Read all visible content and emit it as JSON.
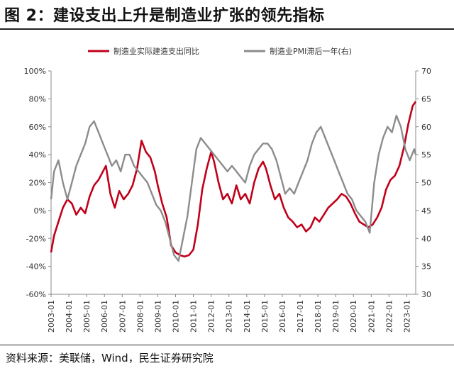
{
  "figure_title": "图 2：建设支出上升是制造业扩张的领先指标",
  "source": "资料来源：美联储，Wind，民生证券研究院",
  "colors": {
    "primary": "#c0001a",
    "secondary": "#8c8c8c",
    "axis": "#888888"
  },
  "chart_data": {
    "type": "line",
    "title": "",
    "legend_position": "top",
    "grid": false,
    "x_ticks": [
      "2003-01",
      "2004-01",
      "2005-01",
      "2006-01",
      "2007-01",
      "2008-01",
      "2009-01",
      "2010-01",
      "2011-01",
      "2012-01",
      "2013-01",
      "2014-01",
      "2015-01",
      "2016-01",
      "2017-01",
      "2018-01",
      "2019-01",
      "2020-01",
      "2021-01",
      "2022-01",
      "2023-01"
    ],
    "xlim": [
      "2003-01",
      "2023-07"
    ],
    "y_left": {
      "ylim": [
        -60,
        100
      ],
      "ticks": [
        "-60%",
        "-40%",
        "-20%",
        "0%",
        "20%",
        "40%",
        "60%",
        "80%",
        "100%"
      ]
    },
    "y_right": {
      "ylim": [
        30,
        70
      ],
      "ticks": [
        "30",
        "35",
        "40",
        "45",
        "50",
        "55",
        "60",
        "65",
        "70"
      ]
    },
    "series": [
      {
        "name": "制造业实际建造支出同比",
        "axis": "left",
        "color": "#c0001a",
        "points": [
          [
            "2003-01",
            -30
          ],
          [
            "2003-03",
            -18
          ],
          [
            "2003-06",
            -8
          ],
          [
            "2003-09",
            2
          ],
          [
            "2003-12",
            8
          ],
          [
            "2004-03",
            5
          ],
          [
            "2004-06",
            -3
          ],
          [
            "2004-09",
            2
          ],
          [
            "2004-12",
            -2
          ],
          [
            "2005-03",
            10
          ],
          [
            "2005-06",
            18
          ],
          [
            "2005-09",
            22
          ],
          [
            "2005-12",
            28
          ],
          [
            "2006-02",
            32
          ],
          [
            "2006-05",
            12
          ],
          [
            "2006-08",
            2
          ],
          [
            "2006-11",
            14
          ],
          [
            "2007-02",
            8
          ],
          [
            "2007-05",
            12
          ],
          [
            "2007-08",
            18
          ],
          [
            "2007-11",
            30
          ],
          [
            "2008-02",
            50
          ],
          [
            "2008-05",
            42
          ],
          [
            "2008-08",
            38
          ],
          [
            "2008-11",
            28
          ],
          [
            "2009-01",
            18
          ],
          [
            "2009-04",
            5
          ],
          [
            "2009-07",
            -5
          ],
          [
            "2009-10",
            -25
          ],
          [
            "2010-01",
            -30
          ],
          [
            "2010-04",
            -32
          ],
          [
            "2010-07",
            -33
          ],
          [
            "2010-10",
            -32
          ],
          [
            "2011-01",
            -28
          ],
          [
            "2011-04",
            -10
          ],
          [
            "2011-07",
            15
          ],
          [
            "2011-10",
            30
          ],
          [
            "2012-01",
            42
          ],
          [
            "2012-03",
            35
          ],
          [
            "2012-06",
            20
          ],
          [
            "2012-09",
            8
          ],
          [
            "2012-12",
            12
          ],
          [
            "2013-03",
            5
          ],
          [
            "2013-06",
            18
          ],
          [
            "2013-09",
            8
          ],
          [
            "2013-12",
            12
          ],
          [
            "2014-03",
            5
          ],
          [
            "2014-06",
            20
          ],
          [
            "2014-09",
            30
          ],
          [
            "2014-12",
            35
          ],
          [
            "2015-02",
            30
          ],
          [
            "2015-05",
            18
          ],
          [
            "2015-08",
            8
          ],
          [
            "2015-11",
            12
          ],
          [
            "2016-02",
            2
          ],
          [
            "2016-05",
            -5
          ],
          [
            "2016-08",
            -8
          ],
          [
            "2016-11",
            -12
          ],
          [
            "2017-02",
            -10
          ],
          [
            "2017-05",
            -15
          ],
          [
            "2017-08",
            -12
          ],
          [
            "2017-11",
            -5
          ],
          [
            "2018-02",
            -8
          ],
          [
            "2018-05",
            -3
          ],
          [
            "2018-08",
            2
          ],
          [
            "2018-11",
            5
          ],
          [
            "2019-02",
            8
          ],
          [
            "2019-05",
            12
          ],
          [
            "2019-08",
            10
          ],
          [
            "2019-11",
            5
          ],
          [
            "2020-02",
            -2
          ],
          [
            "2020-05",
            -8
          ],
          [
            "2020-08",
            -10
          ],
          [
            "2020-11",
            -12
          ],
          [
            "2021-02",
            -10
          ],
          [
            "2021-05",
            -5
          ],
          [
            "2021-08",
            2
          ],
          [
            "2021-11",
            15
          ],
          [
            "2022-02",
            22
          ],
          [
            "2022-05",
            25
          ],
          [
            "2022-08",
            32
          ],
          [
            "2022-11",
            45
          ],
          [
            "2023-02",
            62
          ],
          [
            "2023-05",
            75
          ],
          [
            "2023-07",
            78
          ]
        ]
      },
      {
        "name": "制造业PMI滞后一年(右)",
        "axis": "right",
        "color": "#8c8c8c",
        "points": [
          [
            "2003-01",
            47
          ],
          [
            "2003-03",
            52
          ],
          [
            "2003-06",
            54
          ],
          [
            "2003-09",
            50
          ],
          [
            "2003-12",
            47
          ],
          [
            "2004-03",
            50
          ],
          [
            "2004-06",
            53
          ],
          [
            "2004-09",
            55
          ],
          [
            "2004-12",
            57
          ],
          [
            "2005-03",
            60
          ],
          [
            "2005-06",
            61
          ],
          [
            "2005-09",
            59
          ],
          [
            "2005-12",
            57
          ],
          [
            "2006-03",
            55
          ],
          [
            "2006-06",
            53
          ],
          [
            "2006-09",
            54
          ],
          [
            "2006-12",
            52
          ],
          [
            "2007-03",
            55
          ],
          [
            "2007-06",
            55
          ],
          [
            "2007-09",
            53
          ],
          [
            "2007-12",
            52
          ],
          [
            "2008-03",
            51
          ],
          [
            "2008-06",
            50
          ],
          [
            "2008-09",
            48
          ],
          [
            "2008-12",
            46
          ],
          [
            "2009-03",
            45
          ],
          [
            "2009-06",
            43
          ],
          [
            "2009-09",
            40
          ],
          [
            "2009-12",
            37
          ],
          [
            "2010-03",
            36
          ],
          [
            "2010-06",
            40
          ],
          [
            "2010-09",
            44
          ],
          [
            "2010-12",
            50
          ],
          [
            "2011-03",
            56
          ],
          [
            "2011-06",
            58
          ],
          [
            "2011-09",
            57
          ],
          [
            "2011-12",
            56
          ],
          [
            "2012-03",
            55
          ],
          [
            "2012-06",
            54
          ],
          [
            "2012-09",
            53
          ],
          [
            "2012-12",
            52
          ],
          [
            "2013-03",
            53
          ],
          [
            "2013-06",
            52
          ],
          [
            "2013-09",
            51
          ],
          [
            "2013-12",
            50
          ],
          [
            "2014-03",
            53
          ],
          [
            "2014-06",
            55
          ],
          [
            "2014-09",
            56
          ],
          [
            "2014-12",
            57
          ],
          [
            "2015-03",
            57
          ],
          [
            "2015-06",
            56
          ],
          [
            "2015-09",
            54
          ],
          [
            "2015-12",
            51
          ],
          [
            "2016-03",
            48
          ],
          [
            "2016-06",
            49
          ],
          [
            "2016-09",
            48
          ],
          [
            "2016-12",
            50
          ],
          [
            "2017-03",
            52
          ],
          [
            "2017-06",
            54
          ],
          [
            "2017-09",
            57
          ],
          [
            "2017-12",
            59
          ],
          [
            "2018-03",
            60
          ],
          [
            "2018-06",
            58
          ],
          [
            "2018-09",
            56
          ],
          [
            "2018-12",
            54
          ],
          [
            "2019-03",
            52
          ],
          [
            "2019-06",
            50
          ],
          [
            "2019-09",
            48
          ],
          [
            "2019-12",
            47
          ],
          [
            "2020-03",
            45
          ],
          [
            "2020-06",
            44
          ],
          [
            "2020-09",
            43
          ],
          [
            "2020-12",
            41
          ],
          [
            "2021-03",
            50
          ],
          [
            "2021-06",
            55
          ],
          [
            "2021-09",
            58
          ],
          [
            "2021-12",
            60
          ],
          [
            "2022-03",
            59
          ],
          [
            "2022-06",
            62
          ],
          [
            "2022-09",
            60
          ],
          [
            "2022-12",
            56
          ],
          [
            "2023-03",
            54
          ],
          [
            "2023-06",
            56
          ],
          [
            "2023-07",
            55
          ]
        ]
      }
    ]
  }
}
